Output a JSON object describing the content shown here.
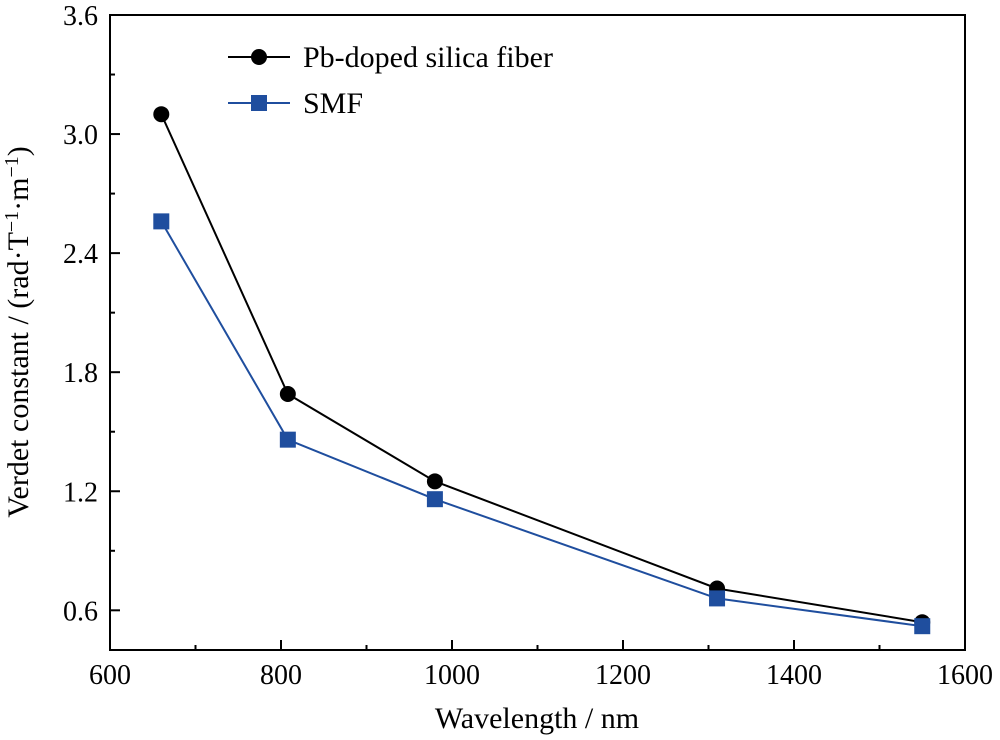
{
  "chart_data": {
    "type": "line",
    "xlabel": "Wavelength / nm",
    "ylabel": {
      "main": "Verdet constant / (rad·T",
      "sup1": "−1",
      "mid": "·m",
      "sup2": "−1",
      "end": ")"
    },
    "xlim": [
      600,
      1600
    ],
    "ylim": [
      0.4,
      3.6
    ],
    "xticks": [
      600,
      800,
      1000,
      1200,
      1400,
      1600
    ],
    "yticks": [
      0.6,
      1.2,
      1.8,
      2.4,
      3.0,
      3.6
    ],
    "ytick_labels": [
      "0.6",
      "1.2",
      "1.8",
      "2.4",
      "3.0",
      "3.6"
    ],
    "grid": false,
    "legend_position": "top-left",
    "series": [
      {
        "name": "Pb-doped silica fiber",
        "color": "#000000",
        "marker": "circle",
        "x": [
          660,
          808,
          980,
          1310,
          1550
        ],
        "y": [
          3.1,
          1.69,
          1.25,
          0.71,
          0.54
        ]
      },
      {
        "name": "SMF",
        "color": "#1f4e9e",
        "marker": "square",
        "x": [
          660,
          808,
          980,
          1310,
          1550
        ],
        "y": [
          2.56,
          1.46,
          1.16,
          0.66,
          0.52
        ]
      }
    ]
  }
}
